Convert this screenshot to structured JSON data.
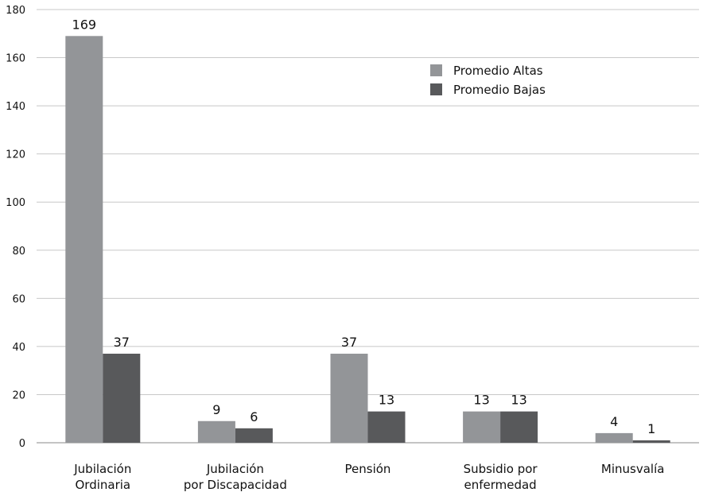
{
  "chart_data": {
    "type": "bar",
    "categories": [
      [
        "Jubilación",
        "Ordinaria"
      ],
      [
        "Jubilación",
        "por Discapacidad"
      ],
      [
        "Pensión"
      ],
      [
        "Subsidio por",
        "enfermedad"
      ],
      [
        "Minusvalía"
      ]
    ],
    "series": [
      {
        "name": "Promedio Altas",
        "values": [
          169,
          9,
          37,
          13,
          4
        ],
        "color": "#939598"
      },
      {
        "name": "Promedio Bajas",
        "values": [
          37,
          6,
          13,
          13,
          1
        ],
        "color": "#58595b"
      }
    ],
    "data_labels": [
      [
        "169",
        "9",
        "37",
        "13",
        "4"
      ],
      [
        "37",
        "6",
        "13",
        "13",
        "1"
      ]
    ],
    "yticks": [
      "0",
      "20",
      "40",
      "60",
      "80",
      "100",
      "120",
      "140",
      "160",
      "180"
    ],
    "ylim": [
      0,
      180
    ],
    "grid": true,
    "legend_position": "top-right"
  }
}
